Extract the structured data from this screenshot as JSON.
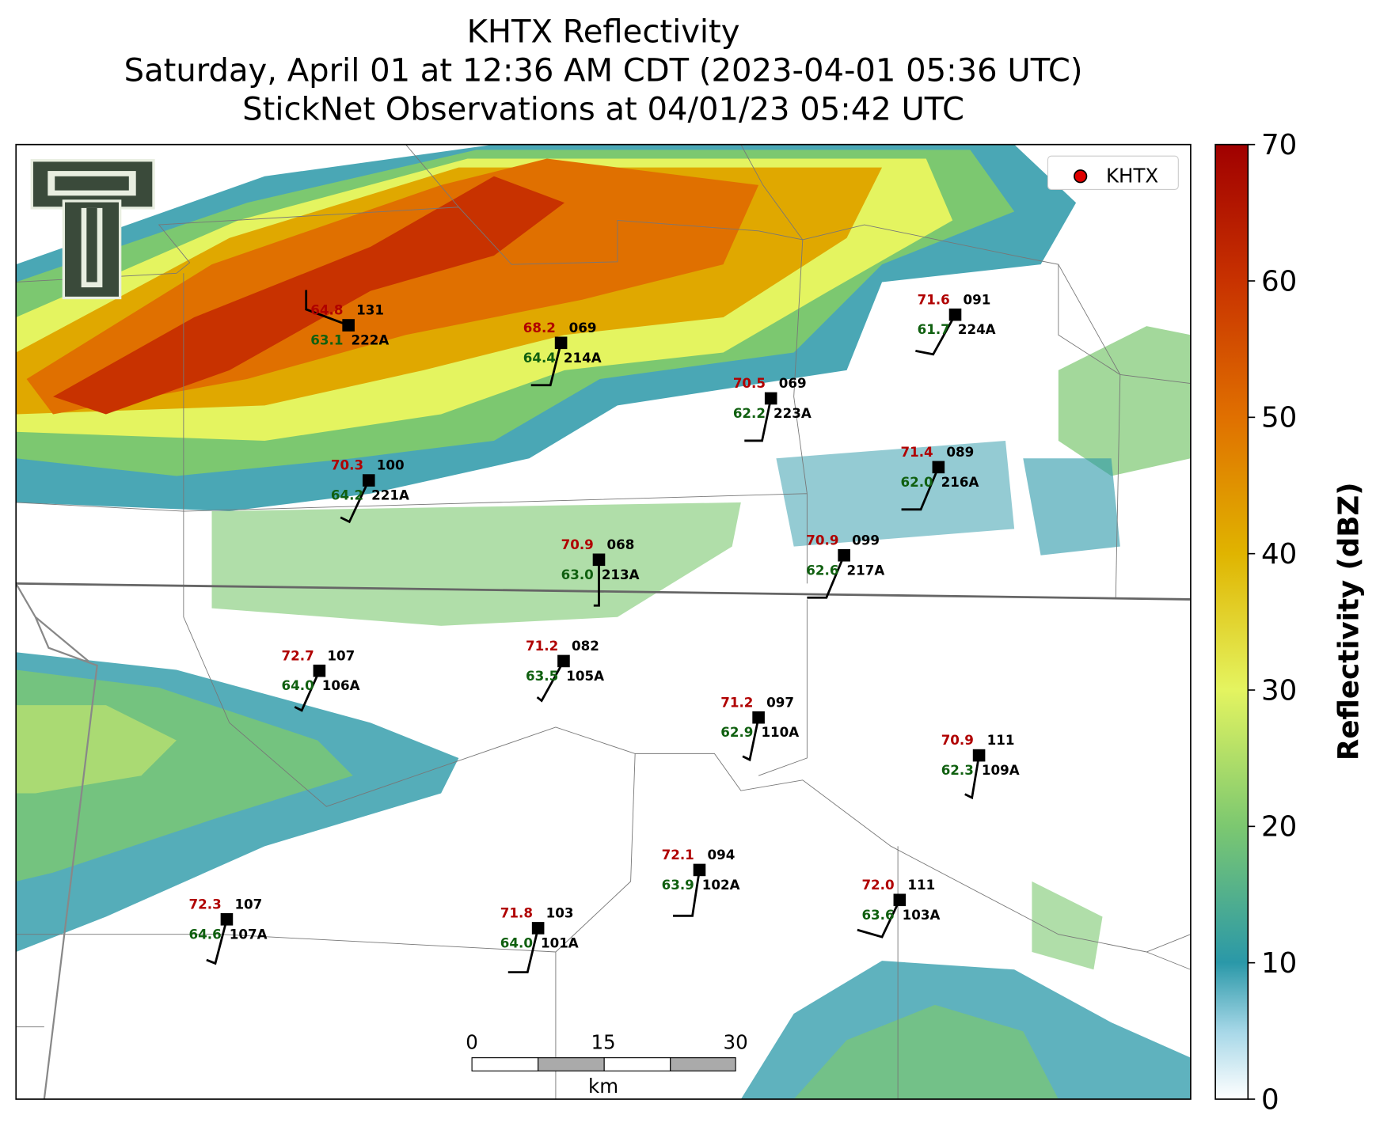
{
  "title": [
    "KHTX Reflectivity",
    "Saturday, April 01 at 12:36 AM CDT (2023-04-01 05:36 UTC)",
    "StickNet Observations at 04/01/23 05:42 UTC"
  ],
  "legend": {
    "label": "KHTX"
  },
  "colorbar": {
    "label": "Reflectivity (dBZ)",
    "limits": [
      0,
      70
    ],
    "ticks": [
      0,
      10,
      20,
      30,
      40,
      50,
      60,
      70
    ]
  },
  "scale_bar": {
    "ticks": [
      0,
      15,
      30
    ],
    "unit": "km"
  },
  "stations": [
    {
      "id": "222A",
      "temp": "64.8",
      "value": "131",
      "dewpoint": "63.1"
    },
    {
      "id": "214A",
      "temp": "68.2",
      "value": "069",
      "dewpoint": "64.4"
    },
    {
      "id": "224A",
      "temp": "71.6",
      "value": "091",
      "dewpoint": "61.7"
    },
    {
      "id": "223A",
      "temp": "70.5",
      "value": "069",
      "dewpoint": "62.2"
    },
    {
      "id": "221A",
      "temp": "70.3",
      "value": "100",
      "dewpoint": "64.2"
    },
    {
      "id": "216A",
      "temp": "71.4",
      "value": "089",
      "dewpoint": "62.0"
    },
    {
      "id": "213A",
      "temp": "70.9",
      "value": "068",
      "dewpoint": "63.0"
    },
    {
      "id": "217A",
      "temp": "70.9",
      "value": "099",
      "dewpoint": "62.6"
    },
    {
      "id": "106A",
      "temp": "72.7",
      "value": "107",
      "dewpoint": "64.0"
    },
    {
      "id": "105A",
      "temp": "71.2",
      "value": "082",
      "dewpoint": "63.5"
    },
    {
      "id": "110A",
      "temp": "71.2",
      "value": "097",
      "dewpoint": "62.9"
    },
    {
      "id": "109A",
      "temp": "70.9",
      "value": "111",
      "dewpoint": "62.3"
    },
    {
      "id": "102A",
      "temp": "72.1",
      "value": "094",
      "dewpoint": "63.9"
    },
    {
      "id": "103A",
      "temp": "72.0",
      "value": "111",
      "dewpoint": "63.6"
    },
    {
      "id": "107A",
      "temp": "72.3",
      "value": "107",
      "dewpoint": "64.6"
    },
    {
      "id": "101A",
      "temp": "71.8",
      "value": "103",
      "dewpoint": "64.0"
    }
  ]
}
